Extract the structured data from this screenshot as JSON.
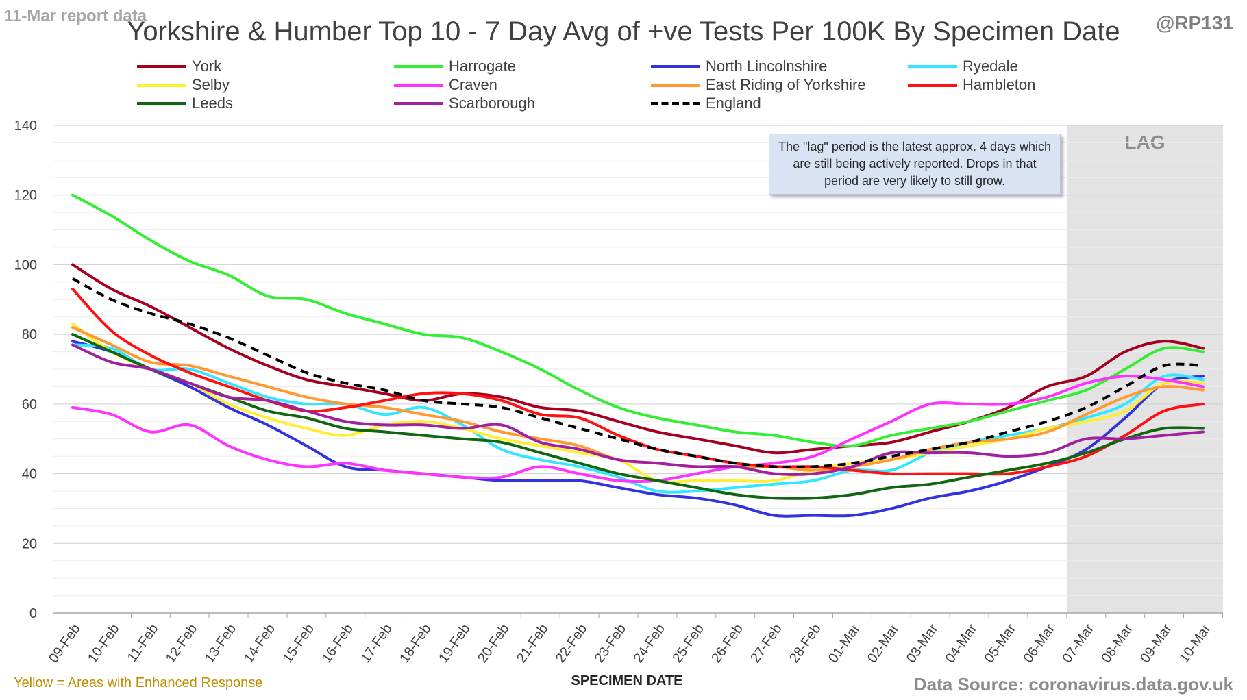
{
  "header": {
    "report_label": "11-Mar report data",
    "handle": "@RP131"
  },
  "footer": {
    "note": "Yellow = Areas with Enhanced Response",
    "source": "Data Source: coronavirus.data.gov.uk"
  },
  "annotation": "The \"lag\" period is the latest approx. 4 days which are still being actively reported.  Drops in that period are very likely to still grow.",
  "colors": {
    "lag_band": "#e3e3e3",
    "gridline": "#d9d9d9"
  },
  "chart_data": {
    "type": "line",
    "title": "Yorkshire & Humber Top 10 - 7 Day Avg of +ve Tests Per 100K By Specimen Date",
    "xlabel": "SPECIMEN DATE",
    "ylabel": "",
    "ylim": [
      0,
      140
    ],
    "yticks": [
      0,
      20,
      40,
      60,
      80,
      100,
      120,
      140
    ],
    "grid": "horizontal",
    "legend_position": "top",
    "lag_region": {
      "label": "LAG",
      "from": "07-Mar",
      "to": "10-Mar"
    },
    "categories": [
      "09-Feb",
      "10-Feb",
      "11-Feb",
      "12-Feb",
      "13-Feb",
      "14-Feb",
      "15-Feb",
      "16-Feb",
      "17-Feb",
      "18-Feb",
      "19-Feb",
      "20-Feb",
      "21-Feb",
      "22-Feb",
      "23-Feb",
      "24-Feb",
      "25-Feb",
      "26-Feb",
      "27-Feb",
      "28-Feb",
      "01-Mar",
      "02-Mar",
      "03-Mar",
      "04-Mar",
      "05-Mar",
      "06-Mar",
      "07-Mar",
      "08-Mar",
      "09-Mar",
      "10-Mar"
    ],
    "series": [
      {
        "name": "York",
        "color": "#a50021",
        "dash": false,
        "values": [
          100,
          93,
          88,
          82,
          76,
          71,
          67,
          65,
          63,
          61,
          63,
          62,
          59,
          58,
          55,
          52,
          50,
          48,
          46,
          47,
          48,
          49,
          52,
          55,
          59,
          65,
          68,
          75,
          78,
          76
        ]
      },
      {
        "name": "Harrogate",
        "color": "#33ee33",
        "dash": false,
        "values": [
          120,
          114,
          107,
          101,
          97,
          91,
          90,
          86,
          83,
          80,
          79,
          75,
          70,
          64,
          59,
          56,
          54,
          52,
          51,
          49,
          48,
          51,
          53,
          55,
          58,
          61,
          64,
          70,
          76,
          75
        ]
      },
      {
        "name": "North Lincolnshire",
        "color": "#3333dd",
        "dash": false,
        "values": [
          78,
          75,
          70,
          65,
          59,
          54,
          48,
          42,
          41,
          40,
          39,
          38,
          38,
          38,
          36,
          34,
          33,
          31,
          28,
          28,
          28,
          30,
          33,
          35,
          38,
          42,
          47,
          56,
          66,
          68
        ]
      },
      {
        "name": "Ryedale",
        "color": "#33e6ff",
        "dash": false,
        "values": [
          77,
          76,
          70,
          70,
          66,
          62,
          60,
          60,
          57,
          59,
          54,
          47,
          44,
          42,
          39,
          35,
          35,
          36,
          37,
          38,
          41,
          41,
          46,
          49,
          51,
          53,
          56,
          60,
          68,
          67
        ]
      },
      {
        "name": "Selby",
        "color": "#ffee33",
        "dash": false,
        "values": [
          83,
          75,
          70,
          66,
          60,
          56,
          53,
          51,
          54,
          55,
          53,
          50,
          48,
          46,
          44,
          38,
          38,
          38,
          38,
          41,
          43,
          44,
          46,
          48,
          50,
          53,
          55,
          58,
          66,
          66
        ]
      },
      {
        "name": "Craven",
        "color": "#ff33ff",
        "dash": false,
        "values": [
          59,
          57,
          52,
          54,
          48,
          44,
          42,
          43,
          41,
          40,
          39,
          39,
          42,
          40,
          38,
          38,
          40,
          42,
          43,
          45,
          50,
          55,
          60,
          60,
          60,
          62,
          66,
          68,
          67,
          65
        ]
      },
      {
        "name": "East Riding of Yorkshire",
        "color": "#ff9933",
        "dash": false,
        "values": [
          82,
          77,
          72,
          71,
          68,
          65,
          62,
          60,
          59,
          57,
          55,
          52,
          50,
          48,
          44,
          43,
          42,
          42,
          42,
          41,
          42,
          44,
          47,
          49,
          50,
          52,
          57,
          62,
          65,
          64
        ]
      },
      {
        "name": "Hambleton",
        "color": "#ff1111",
        "dash": false,
        "values": [
          93,
          81,
          74,
          69,
          65,
          61,
          58,
          59,
          61,
          63,
          63,
          61,
          57,
          56,
          51,
          47,
          45,
          43,
          42,
          42,
          41,
          40,
          40,
          40,
          40,
          42,
          45,
          51,
          58,
          60
        ]
      },
      {
        "name": "Leeds",
        "color": "#116611",
        "dash": false,
        "values": [
          80,
          75,
          70,
          66,
          62,
          58,
          56,
          53,
          52,
          51,
          50,
          49,
          46,
          43,
          40,
          38,
          36,
          34,
          33,
          33,
          34,
          36,
          37,
          39,
          41,
          43,
          46,
          50,
          53,
          53
        ]
      },
      {
        "name": "Scarborough",
        "color": "#a020a0",
        "dash": false,
        "values": [
          77,
          72,
          70,
          66,
          62,
          61,
          58,
          55,
          54,
          54,
          53,
          54,
          49,
          47,
          44,
          43,
          42,
          42,
          40,
          40,
          42,
          46,
          46,
          46,
          45,
          46,
          50,
          50,
          51,
          52
        ]
      },
      {
        "name": "England",
        "color": "#000000",
        "dash": true,
        "values": [
          96,
          90,
          86,
          83,
          79,
          74,
          69,
          66,
          64,
          61,
          60,
          59,
          56,
          53,
          50,
          47,
          45,
          43,
          42,
          42,
          43,
          45,
          47,
          49,
          52,
          55,
          59,
          65,
          71,
          71
        ]
      }
    ]
  }
}
